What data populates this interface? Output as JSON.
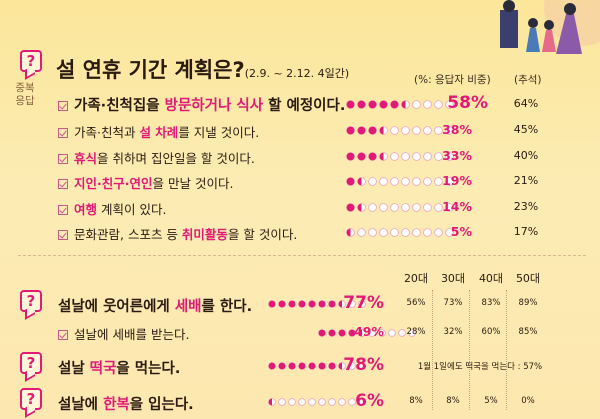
{
  "chart_data": [
    {
      "type": "table",
      "title": "설 연휴 기간 계획은?",
      "subtitle": "(2.9. ~ 2.12. 4일간)",
      "side_note": "중복응답",
      "columns": [
        "(%: 응답자 비중)",
        "(추석)"
      ],
      "rows": [
        {
          "label_parts": [
            {
              "t": "가족·친척집을 "
            },
            {
              "t": "방문하거나 식사",
              "h": true
            },
            {
              "t": " 할 예정이다."
            }
          ],
          "value": 58,
          "pct_label": "58%",
          "chuseok": "64%",
          "emphasis": true
        },
        {
          "label_parts": [
            {
              "t": "가족·친척과 "
            },
            {
              "t": "설 차례",
              "h": true
            },
            {
              "t": "를 지낼 것이다."
            }
          ],
          "value": 38,
          "pct_label": "38%",
          "chuseok": "45%"
        },
        {
          "label_parts": [
            {
              "t": "휴식",
              "h": true
            },
            {
              "t": "을 취하며 집안일을 할 것이다."
            }
          ],
          "value": 33,
          "pct_label": "33%",
          "chuseok": "40%"
        },
        {
          "label_parts": [
            {
              "t": "지인·친구·연인",
              "h": true
            },
            {
              "t": "을 만날 것이다."
            }
          ],
          "value": 19,
          "pct_label": "19%",
          "chuseok": "21%"
        },
        {
          "label_parts": [
            {
              "t": "여행",
              "h": true
            },
            {
              "t": " 계획이 있다."
            }
          ],
          "value": 14,
          "pct_label": "14%",
          "chuseok": "23%"
        },
        {
          "label_parts": [
            {
              "t": "문화관람, 스포츠 등 "
            },
            {
              "t": "취미활동",
              "h": true
            },
            {
              "t": "을 할 것이다."
            }
          ],
          "value": 5,
          "pct_label": "5%",
          "chuseok": "17%"
        }
      ]
    },
    {
      "type": "table",
      "age_columns": [
        "20대",
        "30대",
        "40대",
        "50대"
      ],
      "rows": [
        {
          "label_parts": [
            {
              "t": "설날에 웃어른에게 "
            },
            {
              "t": "세배",
              "h": true
            },
            {
              "t": "를 한다."
            }
          ],
          "value": 77,
          "pct_label": "77%",
          "big": true,
          "icon": true,
          "by_age": [
            "56%",
            "73%",
            "83%",
            "89%"
          ]
        },
        {
          "label_parts": [
            {
              "t": "설날에 세배를 받는다."
            }
          ],
          "value": 49,
          "pct_label": "49%",
          "check": true,
          "by_age": [
            "28%",
            "32%",
            "60%",
            "85%"
          ]
        },
        {
          "label_parts": [
            {
              "t": "설날 "
            },
            {
              "t": "떡국",
              "h": true
            },
            {
              "t": "을 먹는다."
            }
          ],
          "value": 78,
          "pct_label": "78%",
          "big": true,
          "icon": true,
          "note": "1월 1일에도 떡국을 먹는다 : 57%"
        },
        {
          "label_parts": [
            {
              "t": "설날에 "
            },
            {
              "t": "한복",
              "h": true
            },
            {
              "t": "을 입는다."
            }
          ],
          "value": 6,
          "pct_label": "6%",
          "big": true,
          "icon": true,
          "by_age": [
            "8%",
            "8%",
            "5%",
            "0%"
          ]
        }
      ]
    }
  ],
  "colors": {
    "accent": "#e11a77",
    "dot_on": "#e11a77",
    "dot_off": "#ffffff"
  }
}
